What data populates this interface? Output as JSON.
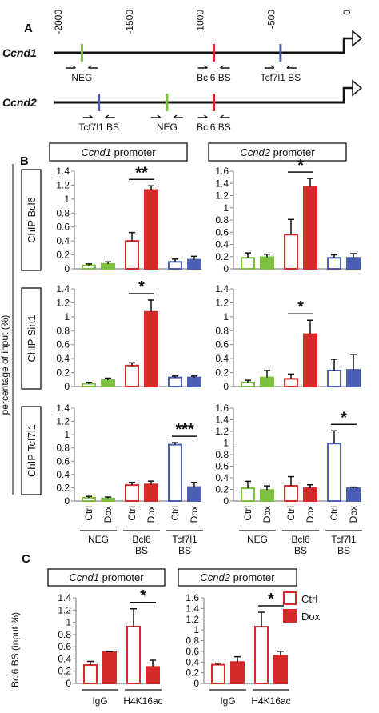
{
  "colors": {
    "neg": "#7dbf3f",
    "bcl6": "#d42a2a",
    "tcf": "#4c5fb5",
    "axis": "#888888",
    "black": "#111111"
  },
  "panel_labels": {
    "a": "A",
    "b": "B",
    "c": "C"
  },
  "panel_a": {
    "axis_ticks": [
      "-2000",
      "-1500",
      "-1000",
      "-500",
      "0"
    ],
    "genes": [
      {
        "name": "Ccnd1",
        "sites": [
          {
            "label": "NEG",
            "pos": -1840,
            "color": "neg"
          },
          {
            "label": "Bcl6 BS",
            "pos": -910,
            "color": "bcl6"
          },
          {
            "label": "Tcf7l1 BS",
            "pos": -440,
            "color": "tcf"
          }
        ]
      },
      {
        "name": "Ccnd2",
        "sites": [
          {
            "label": "Tcf7l1 BS",
            "pos": -1720,
            "color": "tcf"
          },
          {
            "label": "NEG",
            "pos": -1240,
            "color": "neg"
          },
          {
            "label": "Bcl6 BS",
            "pos": -910,
            "color": "bcl6"
          }
        ]
      }
    ]
  },
  "panel_b": {
    "y_axis_label": "percentage of input (%)",
    "column_titles": [
      {
        "italic": "Ccnd1",
        "rest": " promoter"
      },
      {
        "italic": "Ccnd2",
        "rest": " promoter"
      }
    ],
    "row_labels": [
      "ChIP Bcl6",
      "ChIP Sirt1",
      "ChIP Tcf7l1"
    ],
    "x_tick_labels": [
      "Ctrl",
      "Dox",
      "Ctrl",
      "Dox",
      "Ctrl",
      "Dox",
      "Ctrl",
      "Dox"
    ],
    "group_labels": [
      "NEG",
      "Bcl6 BS",
      "Tcf7l1 BS"
    ]
  },
  "chart_data": [
    {
      "type": "bar",
      "title": "ChIP Bcl6 - Ccnd1 promoter",
      "ylim": [
        0,
        1.4
      ],
      "yticks": [
        "0",
        "0.2",
        "0.4",
        "0.6",
        "0.8",
        "1",
        "1.2",
        "1.4"
      ],
      "values": [
        0.05,
        0.07,
        0.4,
        1.13,
        0.1,
        0.13
      ],
      "errors": [
        0.02,
        0.03,
        0.12,
        0.06,
        0.04,
        0.05
      ],
      "sig": [
        {
          "bars": [
            2,
            3
          ],
          "label": "**"
        }
      ]
    },
    {
      "type": "bar",
      "title": "ChIP Bcl6 - Ccnd2 promoter",
      "ylim": [
        0,
        1.6
      ],
      "yticks": [
        "0",
        "0.2",
        "0.4",
        "0.6",
        "0.8",
        "1",
        "1.2",
        "1.4",
        "1.6"
      ],
      "values": [
        0.18,
        0.19,
        0.56,
        1.35,
        0.18,
        0.18
      ],
      "errors": [
        0.08,
        0.05,
        0.25,
        0.13,
        0.05,
        0.07
      ],
      "sig": [
        {
          "bars": [
            2,
            3
          ],
          "label": "*"
        }
      ]
    },
    {
      "type": "bar",
      "title": "ChIP Sirt1 - Ccnd1 promoter",
      "ylim": [
        0,
        1.4
      ],
      "yticks": [
        "0",
        "0.2",
        "0.4",
        "0.6",
        "0.8",
        "1",
        "1.2",
        "1.4"
      ],
      "values": [
        0.04,
        0.09,
        0.3,
        1.07,
        0.13,
        0.13
      ],
      "errors": [
        0.02,
        0.03,
        0.04,
        0.17,
        0.02,
        0.02
      ],
      "sig": [
        {
          "bars": [
            2,
            3
          ],
          "label": "*"
        }
      ]
    },
    {
      "type": "bar",
      "title": "ChIP Sirt1 - Ccnd2 promoter",
      "ylim": [
        0,
        1.4
      ],
      "yticks": [
        "0",
        "0.2",
        "0.4",
        "0.6",
        "0.8",
        "1",
        "1.2",
        "1.4"
      ],
      "values": [
        0.06,
        0.13,
        0.11,
        0.75,
        0.23,
        0.24
      ],
      "errors": [
        0.03,
        0.1,
        0.07,
        0.2,
        0.16,
        0.22
      ],
      "sig": [
        {
          "bars": [
            2,
            3
          ],
          "label": "*"
        }
      ]
    },
    {
      "type": "bar",
      "title": "ChIP Tcf7l1 - Ccnd1 promoter",
      "ylim": [
        0,
        1.4
      ],
      "yticks": [
        "0",
        "0.2",
        "0.4",
        "0.6",
        "0.8",
        "1",
        "1.2",
        "1.4"
      ],
      "values": [
        0.05,
        0.04,
        0.24,
        0.25,
        0.85,
        0.21
      ],
      "errors": [
        0.02,
        0.02,
        0.04,
        0.05,
        0.03,
        0.07
      ],
      "sig": [
        {
          "bars": [
            4,
            5
          ],
          "label": "***"
        }
      ]
    },
    {
      "type": "bar",
      "title": "ChIP Tcf7l1 - Ccnd2 promoter",
      "ylim": [
        0,
        1.6
      ],
      "yticks": [
        "0",
        "0.2",
        "0.4",
        "0.6",
        "0.8",
        "1",
        "1.2",
        "1.4",
        "1.6"
      ],
      "values": [
        0.22,
        0.19,
        0.26,
        0.22,
        0.99,
        0.22
      ],
      "errors": [
        0.12,
        0.07,
        0.16,
        0.06,
        0.22,
        0.02
      ],
      "sig": [
        {
          "bars": [
            4,
            5
          ],
          "label": "*"
        }
      ]
    },
    {
      "type": "bar",
      "title": "Ccnd1 promoter - Bcl6 BS (input %)",
      "ylim": [
        0,
        1.4
      ],
      "yticks": [
        "0",
        "0.2",
        "0.4",
        "0.6",
        "0.8",
        "1",
        "1.2",
        "1.4"
      ],
      "categories": [
        "IgG",
        "H4K16ac"
      ],
      "series": [
        {
          "name": "Ctrl",
          "values": [
            0.3,
            0.93
          ]
        },
        {
          "name": "Dox",
          "values": [
            0.51,
            0.27
          ]
        }
      ],
      "errors": [
        0.06,
        0.01,
        0.29,
        0.11
      ],
      "sig": [
        {
          "bars": [
            2,
            3
          ],
          "label": "*"
        }
      ]
    },
    {
      "type": "bar",
      "title": "Ccnd2 promoter - Bcl6 BS (input %)",
      "ylim": [
        0,
        1.6
      ],
      "yticks": [
        "0",
        "0.2",
        "0.4",
        "0.6",
        "0.8",
        "1",
        "1.2",
        "1.4",
        "1.6"
      ],
      "categories": [
        "IgG",
        "H4K16ac"
      ],
      "series": [
        {
          "name": "Ctrl",
          "values": [
            0.35,
            1.06
          ]
        },
        {
          "name": "Dox",
          "values": [
            0.4,
            0.52
          ]
        }
      ],
      "errors": [
        0.03,
        0.1,
        0.27,
        0.08
      ],
      "sig": [
        {
          "bars": [
            2,
            3
          ],
          "label": "*"
        }
      ]
    }
  ],
  "panel_c": {
    "titles": [
      {
        "italic": "Ccnd1",
        "rest": " promoter"
      },
      {
        "italic": "Ccnd2",
        "rest": " promoter"
      }
    ],
    "y_axis_label": "Bcl6 BS (input %)",
    "x_labels": [
      "IgG",
      "H4K16ac"
    ],
    "legend": [
      "Ctrl",
      "Dox"
    ]
  }
}
